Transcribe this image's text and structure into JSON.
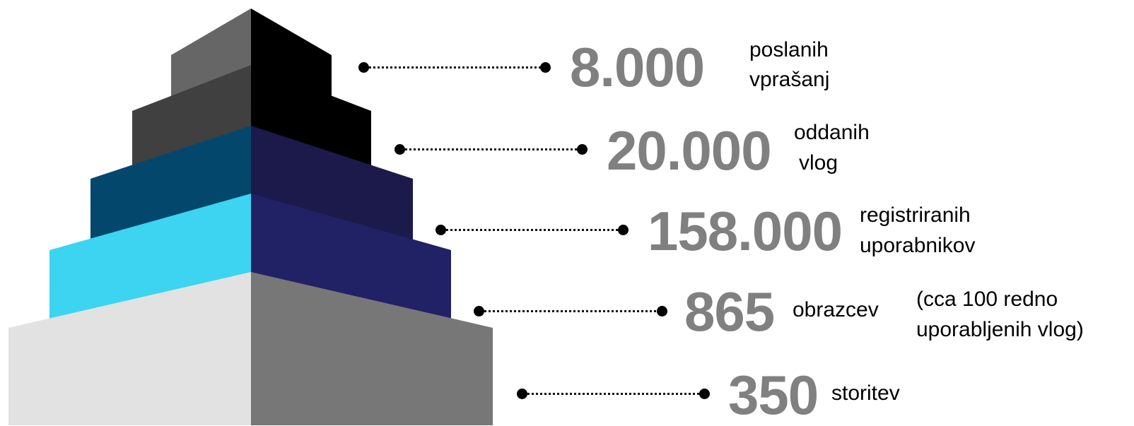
{
  "pyramid": {
    "tiers": [
      {
        "name": "tier-1",
        "left_color": "#666666",
        "right_color": "#000000"
      },
      {
        "name": "tier-2",
        "left_color": "#404040",
        "right_color": "#000000"
      },
      {
        "name": "tier-3",
        "left_color": "#03476d",
        "right_color": "#1b1a4b"
      },
      {
        "name": "tier-4",
        "left_color": "#3cd4f0",
        "right_color": "#212166"
      },
      {
        "name": "tier-5",
        "left_color": "#e2e2e2",
        "right_color": "#777777"
      }
    ]
  },
  "stats": [
    {
      "value": "8.000",
      "label_line1": "poslanih",
      "label_line2": "vprašanj"
    },
    {
      "value": "20.000",
      "label_line1": "oddanih",
      "label_line2": "vlog"
    },
    {
      "value": "158.000",
      "label_line1": "registriranih",
      "label_line2": "uporabnikov"
    },
    {
      "value": "865",
      "label_line1": "obrazcev",
      "note_line1": "(cca 100 redno",
      "note_line2": "uporabljenih vlog)"
    },
    {
      "value": "350",
      "label_line1": "storitev"
    }
  ],
  "colors": {
    "number": "#808080",
    "connector": "#000000",
    "label": "#000000"
  }
}
